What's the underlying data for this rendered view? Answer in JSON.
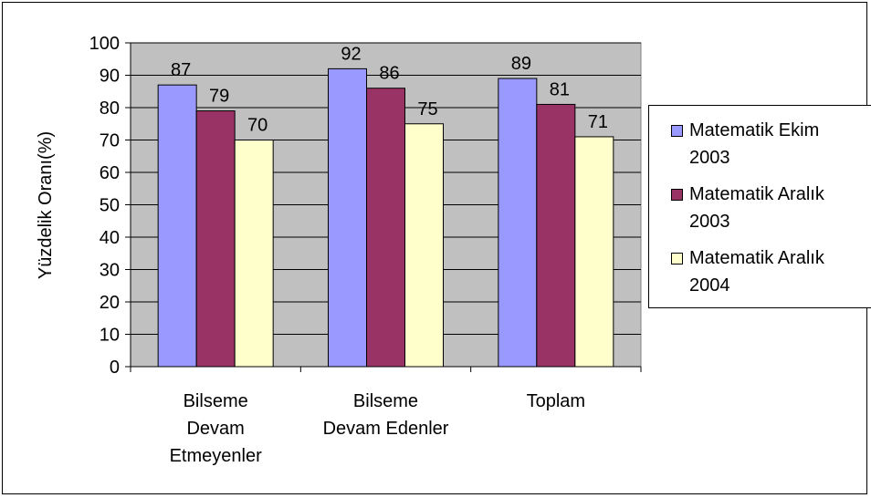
{
  "chart_data": {
    "type": "bar",
    "title": "",
    "xlabel": "",
    "ylabel": "Yüzdelik Oranı(%)",
    "ylim": [
      0,
      100
    ],
    "ytick_step": 10,
    "grid": true,
    "legend_position": "right",
    "plot_background": "#c0c0c0",
    "categories": [
      [
        "Bilseme",
        "Devam",
        "Etmeyenler"
      ],
      [
        "Bilseme",
        "Devam Edenler"
      ],
      [
        "Toplam"
      ]
    ],
    "series": [
      {
        "name": "Matematik Ekim 2003",
        "legend_lines": [
          "Matematik Ekim",
          "2003"
        ],
        "color": "#9999ff",
        "values": [
          87,
          92,
          89
        ]
      },
      {
        "name": "Matematik Aralık 2003",
        "legend_lines": [
          "Matematik Aralık",
          "2003"
        ],
        "color": "#993366",
        "values": [
          79,
          86,
          81
        ]
      },
      {
        "name": "Matematik Aralık 2004",
        "legend_lines": [
          "Matematik Aralık",
          "2004"
        ],
        "color": "#ffffcc",
        "values": [
          70,
          75,
          71
        ]
      }
    ],
    "data_labels": [
      [
        "87",
        "92",
        "89"
      ],
      [
        "79",
        "86",
        "81"
      ],
      [
        "70",
        "75",
        "71"
      ]
    ]
  }
}
